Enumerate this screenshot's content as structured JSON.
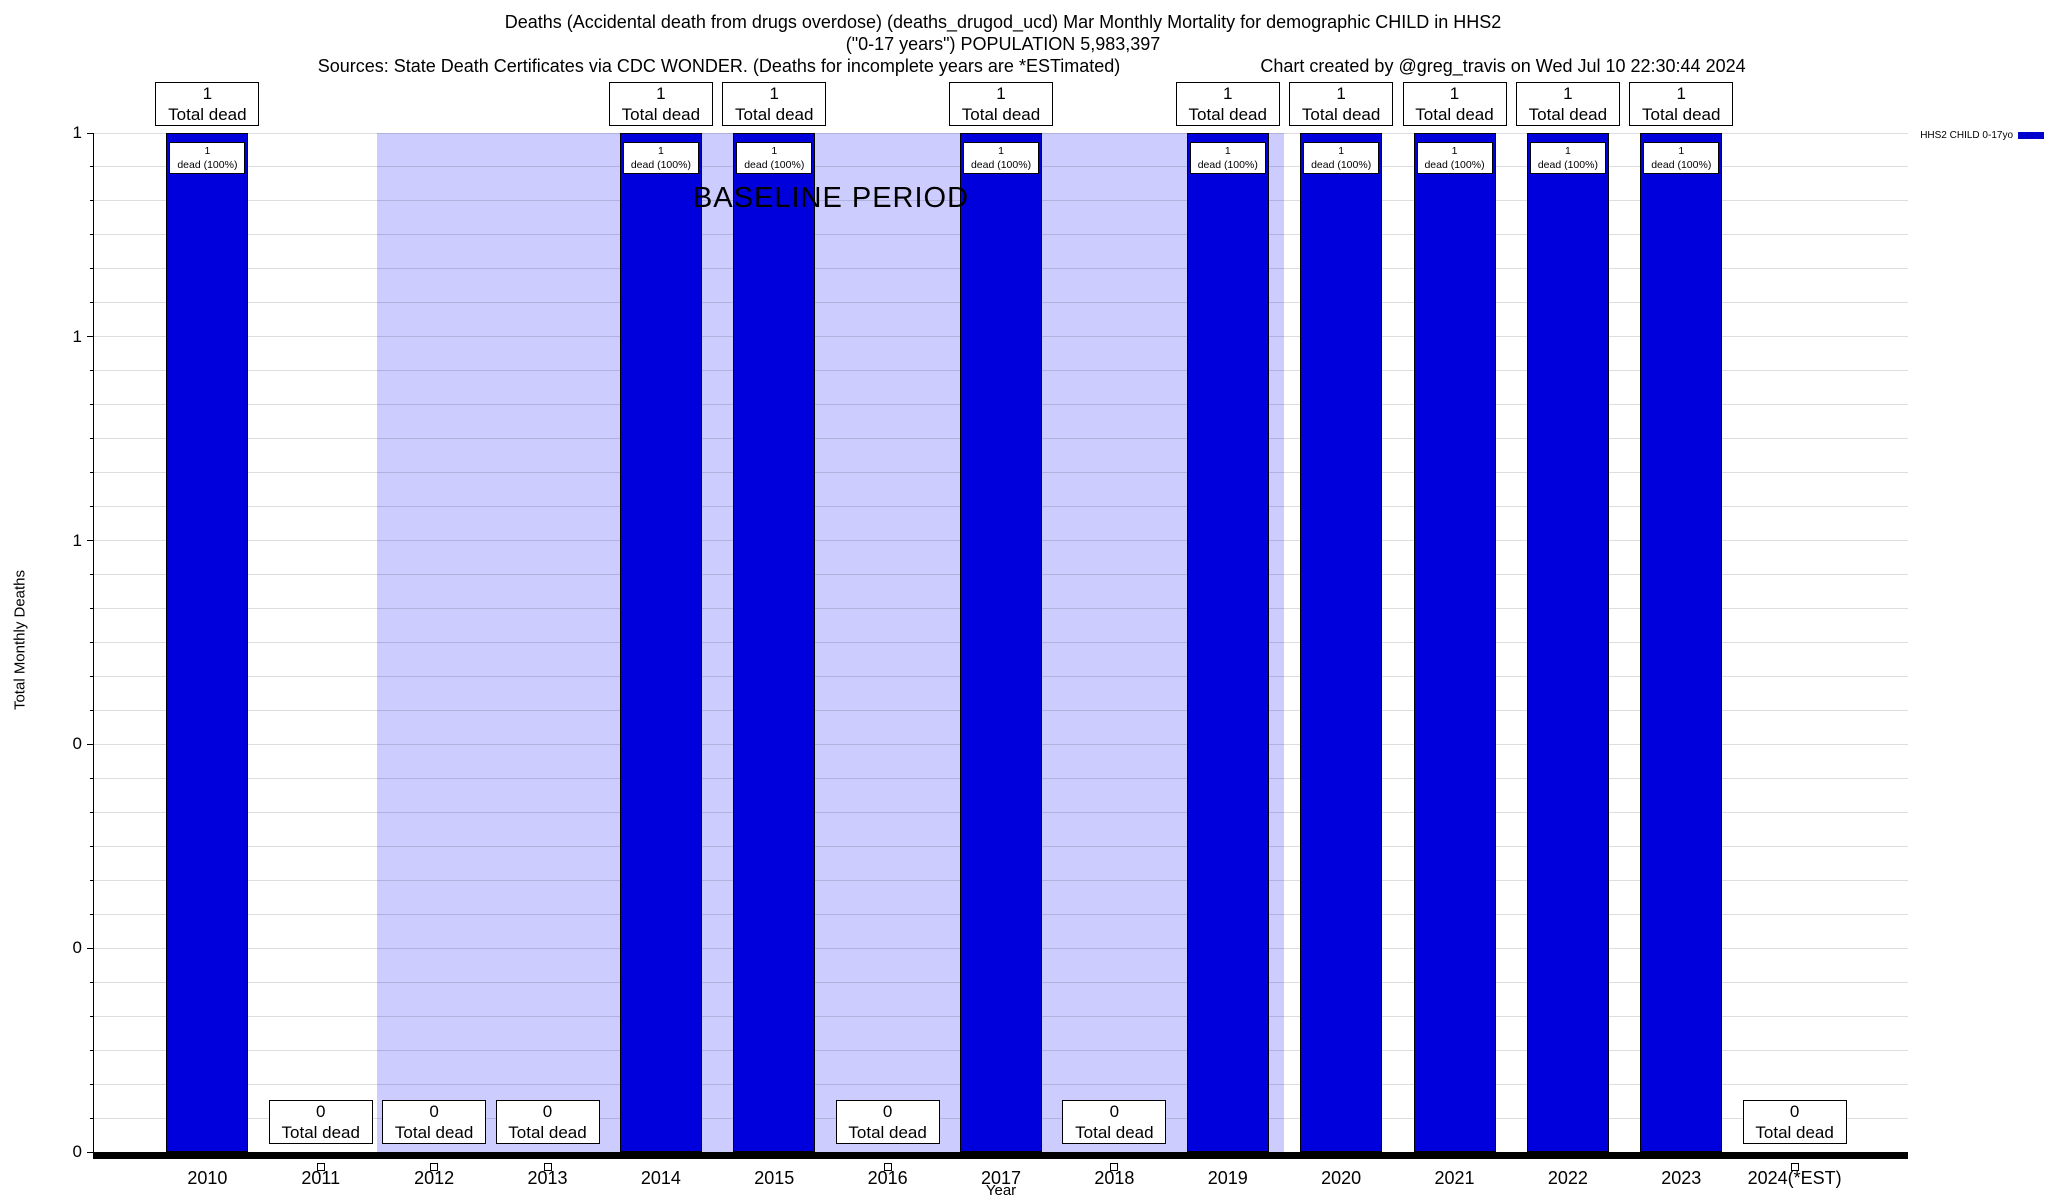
{
  "header": {
    "title_line1": "Deaths (Accidental death from drugs overdose) (deaths_drugod_ucd) Mar Monthly Mortality for demographic CHILD in HHS2",
    "title_line2": "(\"0-17 years\") POPULATION 5,983,397",
    "sources": "Sources: State Death Certificates via CDC WONDER. (Deaths for incomplete years are *ESTimated)",
    "credit": "Chart created by @greg_travis on Wed Jul 10 22:30:44 2024"
  },
  "legend": {
    "label": "HHS2 CHILD 0-17yo",
    "color": "#0000cc"
  },
  "axes": {
    "xlabel": "Year",
    "ylabel": "Total Monthly Deaths",
    "y_tick_labels_top_to_bottom": [
      "1",
      "1",
      "1",
      "0",
      "0",
      "0"
    ]
  },
  "chart_data": {
    "type": "bar",
    "title": "Deaths (Accidental death from drugs overdose) (deaths_drugod_ucd) Mar Monthly Mortality for demographic CHILD in HHS2 (\"0-17 years\") POPULATION 5,983,397",
    "xlabel": "Year",
    "ylabel": "Total Monthly Deaths",
    "ylim": [
      0,
      1
    ],
    "grid": "horizontal-minor",
    "legend_position": "top-right-outside",
    "categories": [
      "2010",
      "2011",
      "2012",
      "2013",
      "2014",
      "2015",
      "2016",
      "2017",
      "2018",
      "2019",
      "2020",
      "2021",
      "2022",
      "2023",
      "2024(*EST)"
    ],
    "series": [
      {
        "name": "HHS2 CHILD 0-17yo",
        "values": [
          1,
          0,
          0,
          0,
          1,
          1,
          0,
          1,
          0,
          1,
          1,
          1,
          1,
          1,
          0
        ]
      }
    ],
    "bar_color": "#0000dd",
    "annotations": {
      "total_label_text": "Total dead",
      "inner_label_text": "dead (100%)",
      "baseline_region": {
        "label": "BASELINE PERIOD",
        "start_after_category": "2011",
        "end_after_category": "2019",
        "color": "#ccccff"
      }
    }
  }
}
